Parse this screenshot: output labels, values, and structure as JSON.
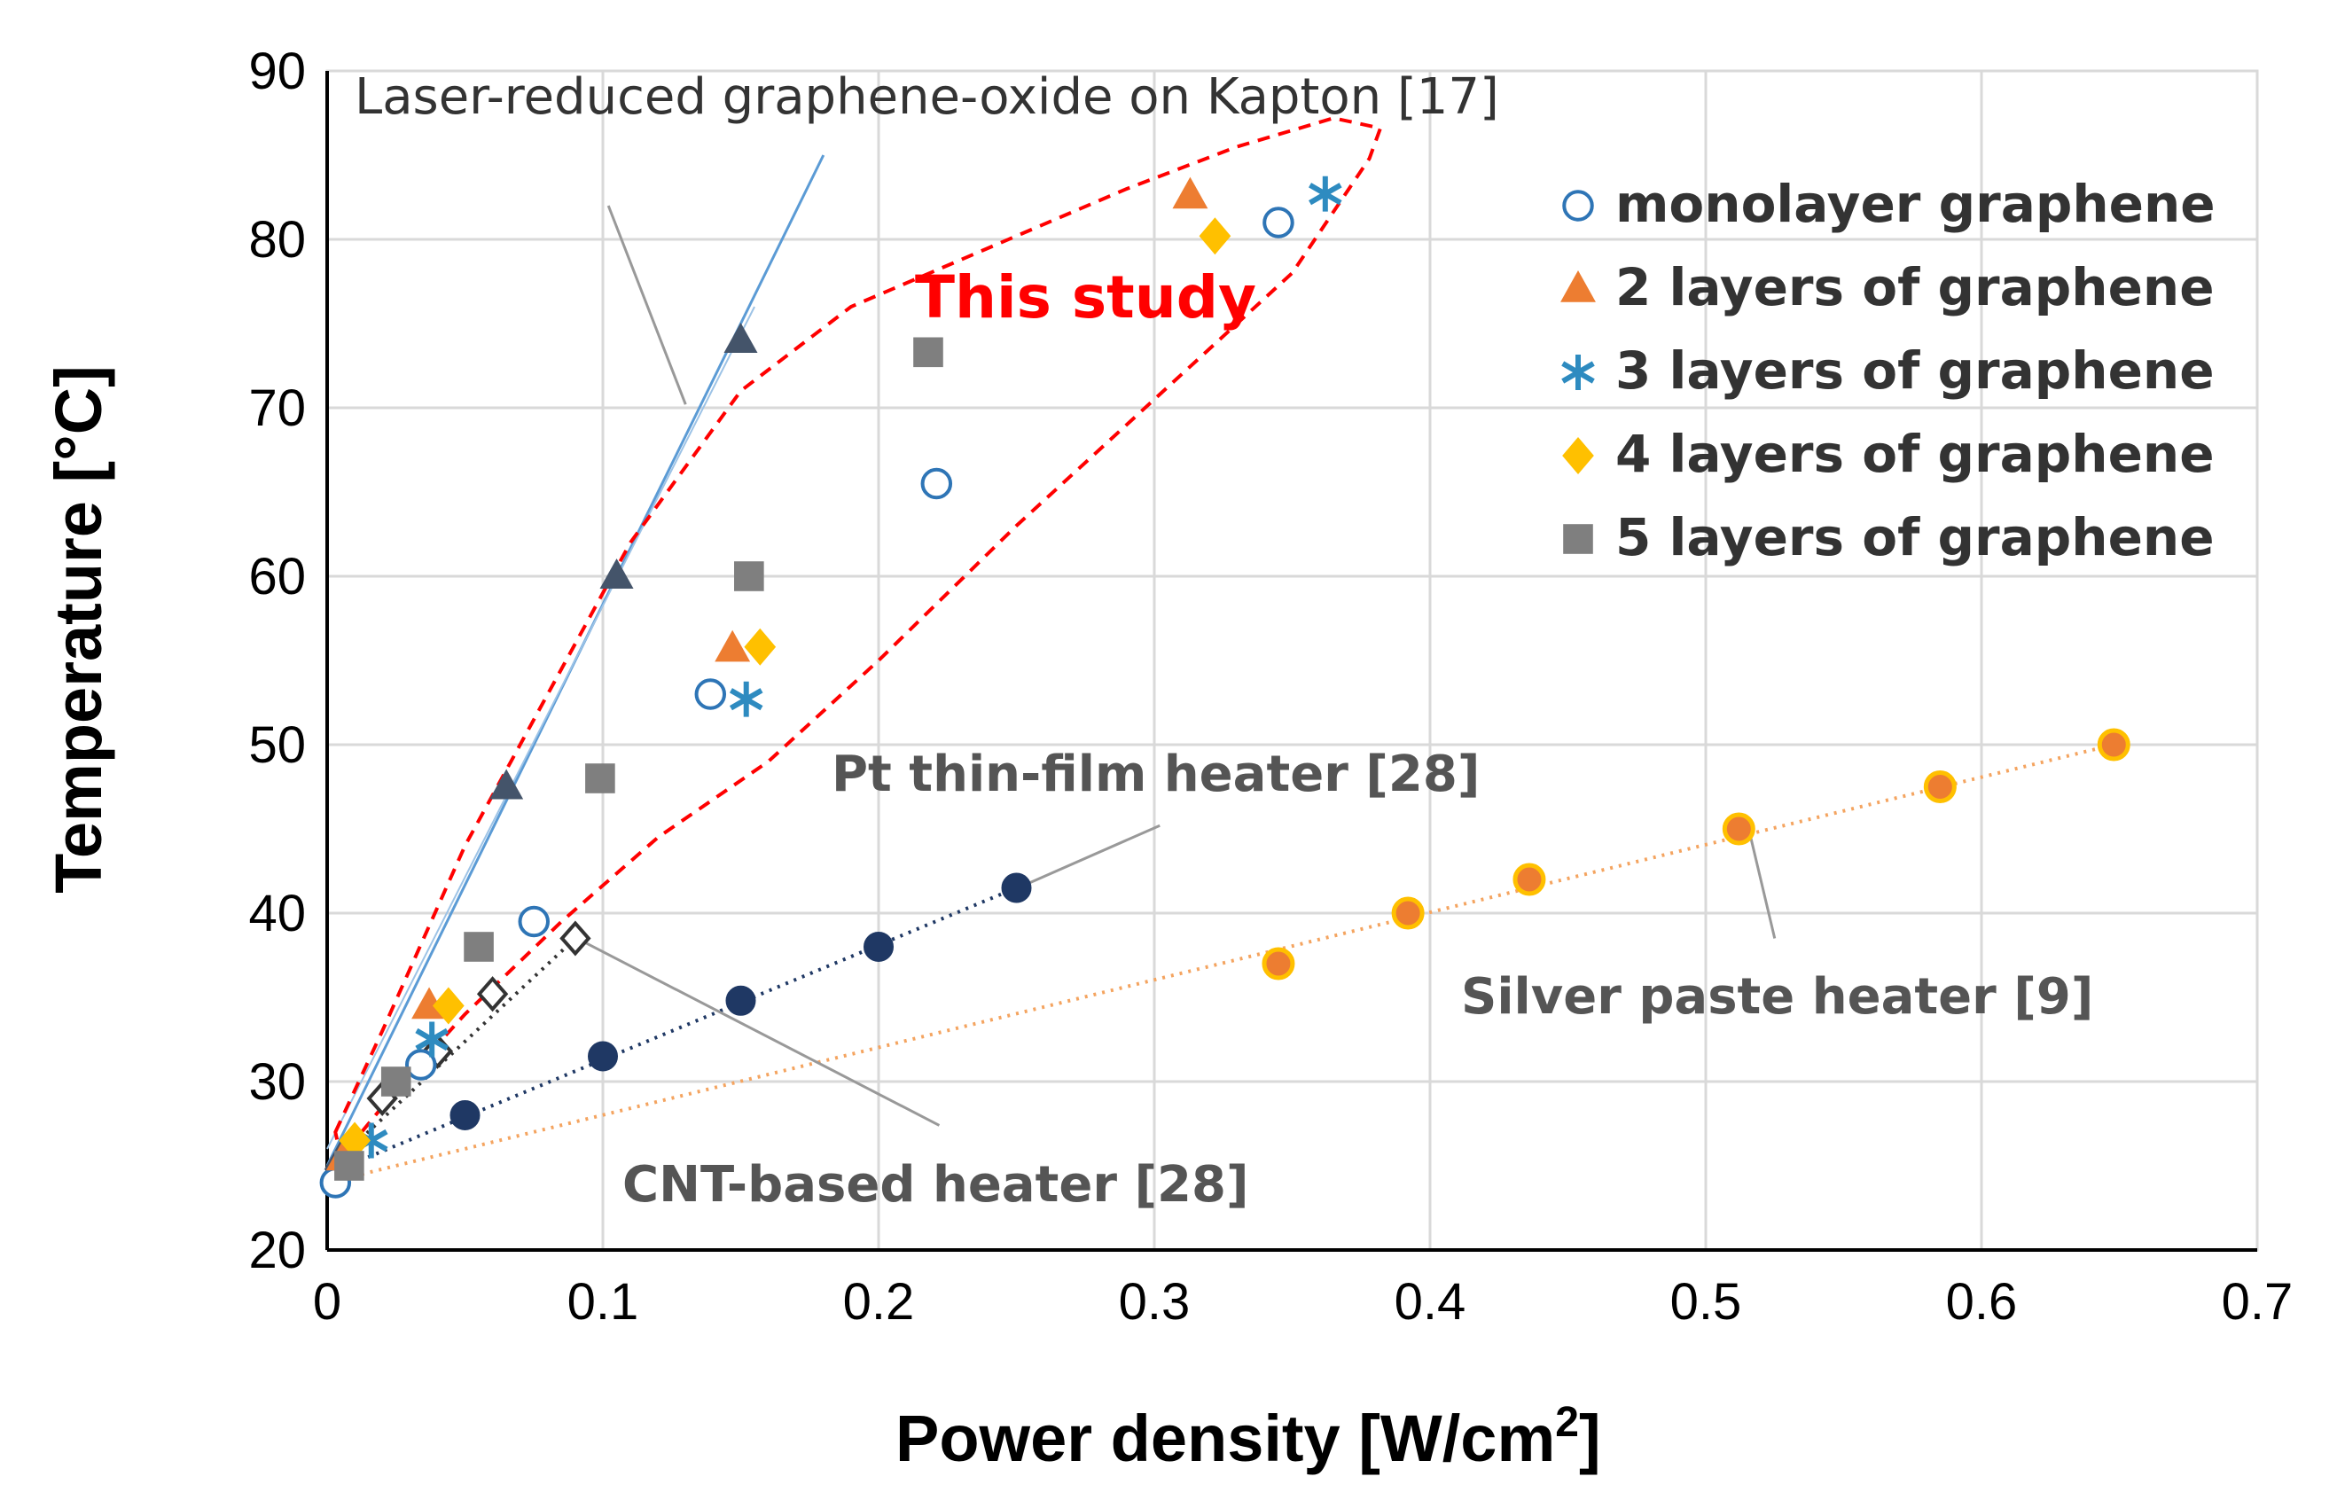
{
  "chart_data": {
    "type": "scatter",
    "xlabel": "Power density [W/cm",
    "xlabel_sup": "2",
    "xlabel_end": "]",
    "ylabel": "Temperature [°C]",
    "xlim": [
      0,
      0.7
    ],
    "ylim": [
      20,
      90
    ],
    "xticks": [
      0,
      0.1,
      0.2,
      0.3,
      0.4,
      0.5,
      0.6,
      0.7
    ],
    "xtick_labels": [
      "0",
      "0.1",
      "0.2",
      "0.3",
      "0.4",
      "0.5",
      "0.6",
      "0.7"
    ],
    "yticks": [
      20,
      30,
      40,
      50,
      60,
      70,
      80,
      90
    ],
    "ytick_labels": [
      "20",
      "30",
      "40",
      "50",
      "60",
      "70",
      "80",
      "90"
    ],
    "grid": true,
    "legend_position": "top-right",
    "series": [
      {
        "name": "monolayer graphene",
        "marker": "open-circle",
        "color": "#2e75b6",
        "x": [
          0.003,
          0.034,
          0.075,
          0.139,
          0.221,
          0.345
        ],
        "y": [
          24,
          31,
          39.5,
          53,
          65.5,
          81
        ]
      },
      {
        "name": "2 layers of graphene",
        "marker": "triangle",
        "color": "#ed7d31",
        "x": [
          0.006,
          0.037,
          0.147,
          0.313
        ],
        "y": [
          25.5,
          34.5,
          55.7,
          82.6
        ]
      },
      {
        "name": "3 layers of graphene",
        "marker": "asterisk",
        "color": "#2e8bc0",
        "x": [
          0.016,
          0.038,
          0.152,
          0.362
        ],
        "y": [
          26.5,
          32.5,
          52.7,
          82.7
        ]
      },
      {
        "name": "4 layers of graphene",
        "marker": "diamond",
        "color": "#ffc000",
        "x": [
          0.01,
          0.044,
          0.157,
          0.322
        ],
        "y": [
          26.5,
          34.5,
          55.8,
          80.2
        ]
      },
      {
        "name": "5 layers of graphene",
        "marker": "square",
        "color": "#7f7f7f",
        "x": [
          0.008,
          0.025,
          0.055,
          0.099,
          0.153,
          0.218
        ],
        "y": [
          25,
          30,
          38,
          48,
          60,
          73.3
        ]
      }
    ],
    "reference_series": [
      {
        "name": "Laser-reduced graphene-oxide on Kapton",
        "marker": "triangle",
        "color": "#44546a",
        "x": [
          0.005,
          0.065,
          0.105,
          0.15
        ],
        "y": [
          25.5,
          47.5,
          60,
          74
        ],
        "fit": {
          "x": [
            0,
            0.18
          ],
          "y": [
            25,
            85
          ]
        }
      },
      {
        "name": "Pt thin-film heater",
        "marker": "filled-circle",
        "color": "#1f3864",
        "x": [
          0.05,
          0.1,
          0.15,
          0.2,
          0.25
        ],
        "y": [
          28,
          31.5,
          34.8,
          38,
          41.5
        ],
        "fit": {
          "x": [
            0,
            0.25
          ],
          "y": [
            24.5,
            41.5
          ]
        }
      },
      {
        "name": "CNT-based heater",
        "marker": "open-diamond",
        "color": "#333333",
        "x": [
          0.01,
          0.02,
          0.04,
          0.06,
          0.09
        ],
        "y": [
          26.5,
          29,
          31.8,
          35.2,
          38.5
        ],
        "fit": {
          "x": [
            0.005,
            0.09
          ],
          "y": [
            25.5,
            38.5
          ]
        }
      },
      {
        "name": "Silver paste heater",
        "marker": "orange-circle",
        "color": "#f4a460",
        "x": [
          0.345,
          0.392,
          0.436,
          0.512,
          0.585,
          0.648
        ],
        "y": [
          37,
          40,
          42,
          45,
          47.5,
          50
        ],
        "fit": {
          "x": [
            0,
            0.648
          ],
          "y": [
            24,
            50
          ]
        }
      }
    ],
    "annotations": {
      "kapton": "Laser-reduced graphene-oxide on Kapton [17]",
      "pt": "Pt thin-film heater [28]",
      "cnt": "CNT-based heater [28]",
      "silver": "Silver paste heater [9]",
      "this_study": "This study"
    }
  }
}
